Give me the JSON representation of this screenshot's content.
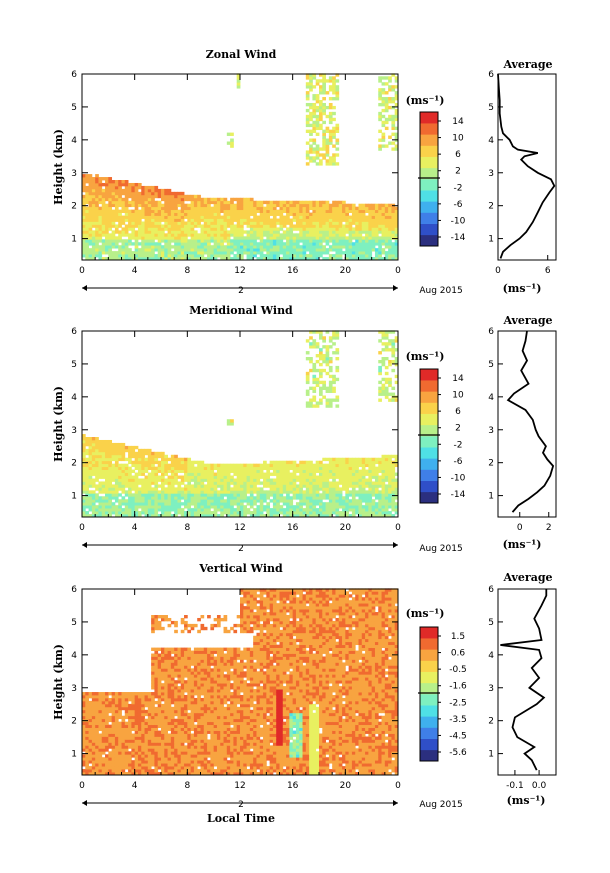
{
  "colormap": [
    "#2b2f7f",
    "#2f4fc8",
    "#3f7fe8",
    "#3fb0ee",
    "#4fe0e6",
    "#7ef0c0",
    "#b8f08a",
    "#e8f060",
    "#fad24a",
    "#f8a440",
    "#f06a30",
    "#e02a28"
  ],
  "shared": {
    "xlabel": "Local Time",
    "ylabel": "Height (km)",
    "date_label": "Aug 2015",
    "day_label": "2",
    "x_ticks": [
      "0",
      "4",
      "8",
      "12",
      "16",
      "20",
      "0"
    ],
    "y_ticks": [
      "1",
      "2",
      "3",
      "4",
      "5",
      "6"
    ],
    "unit_label": "(ms⁻¹)",
    "profile_title": "Average"
  },
  "chart_data": [
    {
      "type": "heatmap",
      "title": "Zonal Wind",
      "xlim": [
        0,
        24
      ],
      "ylim": [
        0.35,
        6
      ],
      "colorbar_ticks": [
        "14",
        "10",
        "6",
        "2",
        "-2",
        "-6",
        "-10",
        "-14"
      ],
      "colorbar_range": [
        -16,
        16
      ],
      "profile": {
        "title": "Average",
        "x_ticks": [
          "0",
          "6"
        ],
        "xlim": [
          0,
          7
        ],
        "height": [
          0.4,
          0.6,
          0.8,
          1.0,
          1.2,
          1.5,
          1.8,
          2.1,
          2.4,
          2.6,
          2.8,
          3.0,
          3.2,
          3.4,
          3.5,
          3.6,
          3.7,
          3.8,
          4.0,
          4.2,
          4.4,
          4.8,
          5.2,
          5.6,
          6.0
        ],
        "value": [
          0.3,
          0.6,
          1.5,
          2.6,
          3.4,
          4.2,
          4.8,
          5.4,
          6.2,
          6.8,
          6.4,
          4.8,
          3.6,
          2.8,
          3.2,
          4.8,
          2.4,
          1.8,
          1.4,
          0.6,
          0.4,
          0.2,
          0.2,
          0.1,
          0.0
        ]
      }
    },
    {
      "type": "heatmap",
      "title": "Meridional Wind",
      "xlim": [
        0,
        24
      ],
      "ylim": [
        0.35,
        6
      ],
      "colorbar_ticks": [
        "14",
        "10",
        "6",
        "2",
        "-2",
        "-6",
        "-10",
        "-14"
      ],
      "colorbar_range": [
        -16,
        16
      ],
      "profile": {
        "title": "Average",
        "x_ticks": [
          "0",
          "2"
        ],
        "xlim": [
          -1.5,
          2.5
        ],
        "height": [
          0.5,
          0.7,
          0.9,
          1.1,
          1.3,
          1.6,
          1.9,
          2.1,
          2.3,
          2.5,
          2.8,
          3.0,
          3.3,
          3.6,
          3.9,
          4.1,
          4.4,
          4.8,
          5.1,
          5.4,
          5.7,
          6.0
        ],
        "value": [
          -0.5,
          -0.1,
          0.6,
          1.2,
          1.7,
          2.1,
          2.3,
          1.9,
          1.6,
          1.8,
          1.3,
          1.1,
          0.9,
          0.4,
          -0.8,
          -0.4,
          0.6,
          0.1,
          0.5,
          0.2,
          0.4,
          0.5
        ]
      }
    },
    {
      "type": "heatmap",
      "title": "Vertical Wind",
      "xlim": [
        0,
        24
      ],
      "ylim": [
        0.35,
        6
      ],
      "colorbar_ticks": [
        "1.5",
        "0.6",
        "-0.5",
        "-1.6",
        "-2.5",
        "-3.5",
        "-4.5",
        "-5.6"
      ],
      "colorbar_range": [
        -6.1,
        2.1
      ],
      "profile": {
        "title": "Average",
        "x_ticks": [
          "-0.1",
          "0.0"
        ],
        "xlim": [
          -0.17,
          0.07
        ],
        "height": [
          0.5,
          0.8,
          1.0,
          1.2,
          1.5,
          1.8,
          2.1,
          2.5,
          2.7,
          3.0,
          3.3,
          3.6,
          3.9,
          4.15,
          4.3,
          4.45,
          4.8,
          5.1,
          5.5,
          5.8,
          6.0
        ],
        "value": [
          -0.01,
          -0.03,
          -0.06,
          -0.02,
          -0.09,
          -0.11,
          -0.1,
          -0.01,
          0.02,
          -0.04,
          0.0,
          -0.03,
          0.01,
          0.0,
          -0.16,
          0.01,
          0.0,
          -0.02,
          0.01,
          0.03,
          0.03
        ]
      }
    }
  ]
}
